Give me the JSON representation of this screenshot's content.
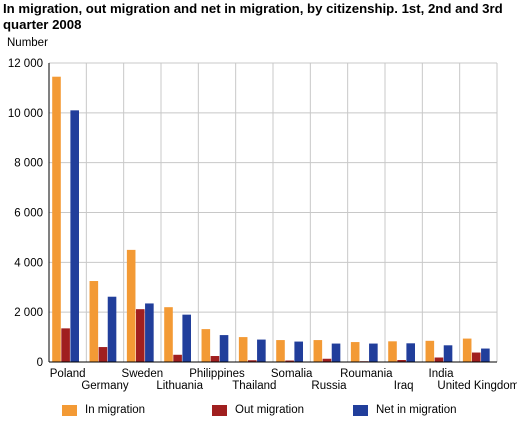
{
  "chart_data": {
    "type": "bar",
    "title": "In migration, out migration and net in migration, by citizenship. 1st, 2nd and 3rd quarter 2008",
    "ylabel": "Number",
    "ylim": [
      0,
      12000
    ],
    "yticks": [
      0,
      2000,
      4000,
      6000,
      8000,
      10000,
      12000
    ],
    "ytick_labels": [
      "0",
      "2 000",
      "4 000",
      "6 000",
      "8 000",
      "10 000",
      "12 000"
    ],
    "grid": true,
    "legend_position": "bottom",
    "categories": [
      "Poland",
      "Germany",
      "Sweden",
      "Lithuania",
      "Philippines",
      "Thailand",
      "Somalia",
      "Russia",
      "Roumania",
      "Iraq",
      "India",
      "United Kingdom"
    ],
    "series": [
      {
        "name": "In migration",
        "color": "#f39a35",
        "values": [
          11450,
          3250,
          4500,
          2200,
          1320,
          1000,
          880,
          880,
          800,
          830,
          850,
          940
        ]
      },
      {
        "name": "Out migration",
        "color": "#a01f1f",
        "values": [
          1350,
          600,
          2120,
          290,
          240,
          70,
          60,
          130,
          30,
          80,
          180,
          380
        ]
      },
      {
        "name": "Net in migration",
        "color": "#213e9b",
        "values": [
          10100,
          2620,
          2350,
          1900,
          1080,
          900,
          820,
          740,
          740,
          750,
          670,
          540
        ]
      }
    ]
  }
}
